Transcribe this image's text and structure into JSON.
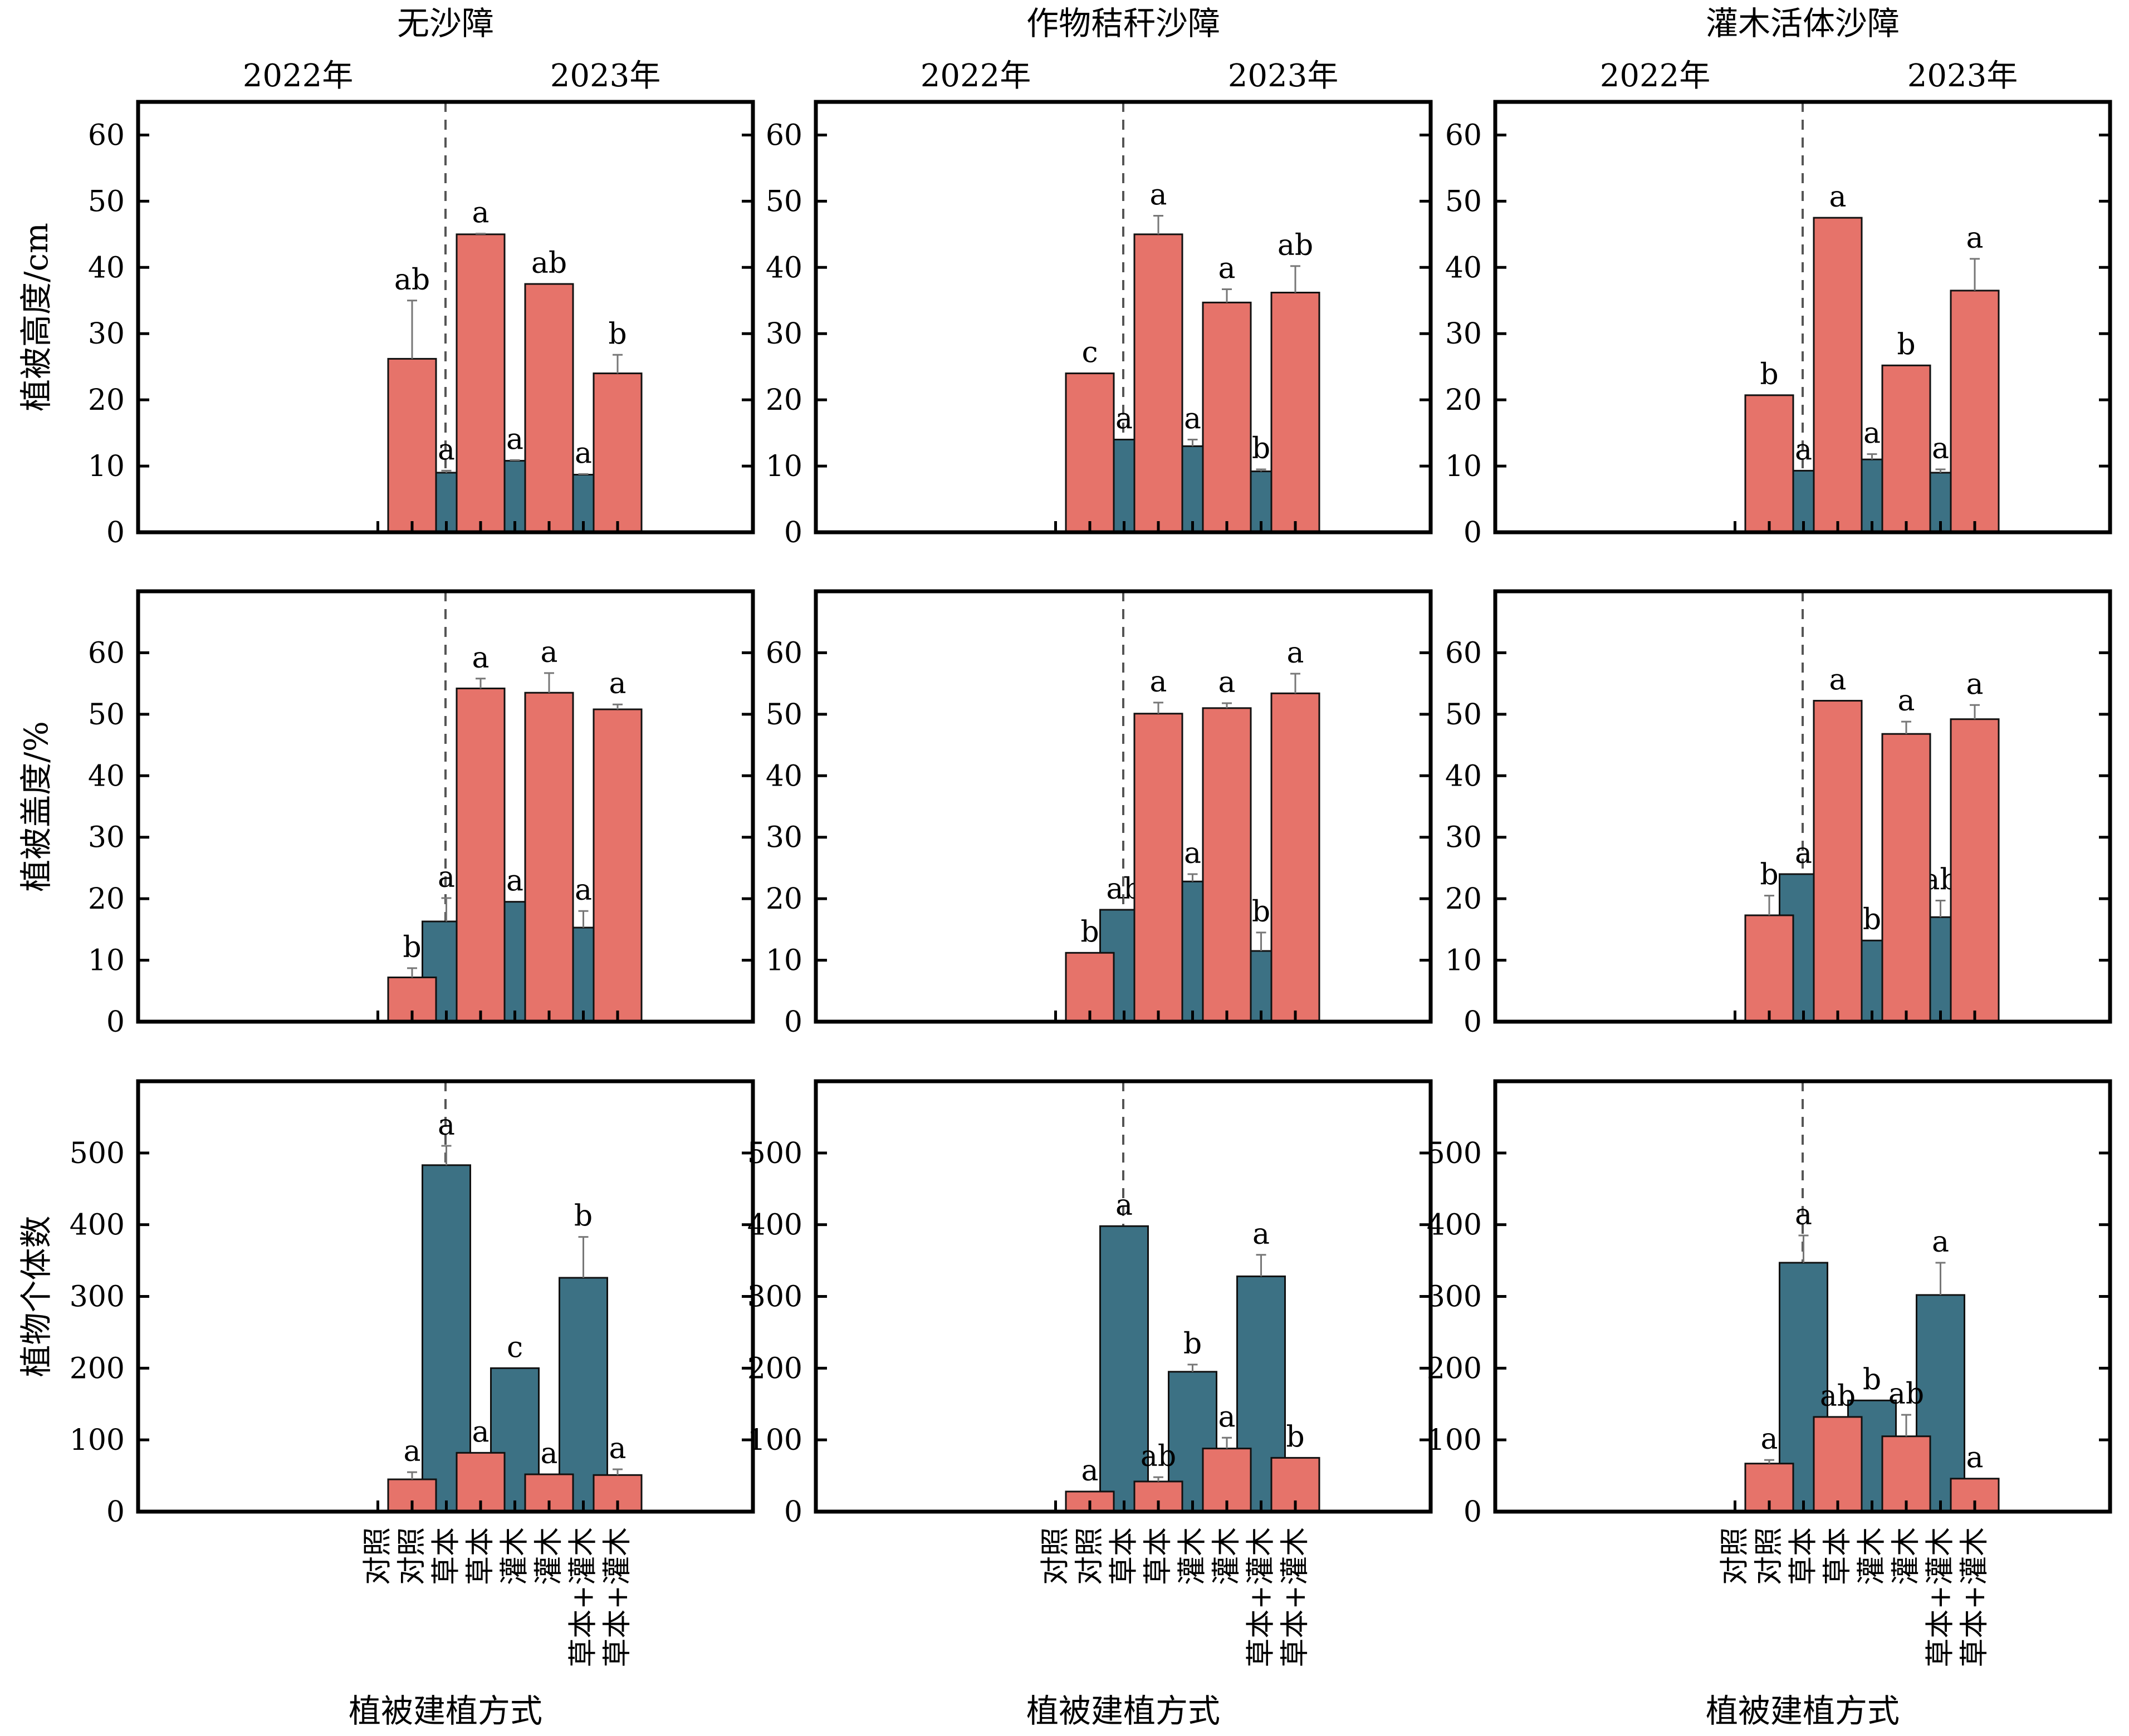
{
  "colors": {
    "y2022": "#3c7184",
    "y2023": "#e6736a"
  },
  "panel_titles": [
    "无沙障",
    "作物秸秆沙障",
    "灌木活体沙障"
  ],
  "years": [
    "2022年",
    "2023年"
  ],
  "categories": [
    "对照",
    "草本",
    "灌木",
    "草本+灌木"
  ],
  "xlabel": "植被建植方式",
  "chart_data": [
    {
      "type": "bar",
      "title": "无沙障",
      "xlabel": "植被建植方式",
      "ylabel": "植被高度/cm",
      "ylim": [
        0,
        65
      ],
      "yticks": [
        0,
        10,
        20,
        30,
        40,
        50,
        60
      ],
      "categories": [
        "对照",
        "草本",
        "灌木",
        "草本+灌木"
      ],
      "series": [
        {
          "name": "2022年",
          "values": [
            0,
            9,
            10.8,
            8.7
          ],
          "errors": [
            0,
            0.3,
            0.1,
            0.1
          ],
          "labels": [
            "",
            "a",
            "a",
            "a"
          ]
        },
        {
          "name": "2023年",
          "values": [
            26.2,
            45,
            37.5,
            24
          ],
          "errors": [
            8.8,
            0.1,
            0,
            2.8
          ],
          "labels": [
            "ab",
            "a",
            "ab",
            "b"
          ]
        }
      ]
    },
    {
      "type": "bar",
      "title": "作物秸秆沙障",
      "xlabel": "植被建植方式",
      "ylabel": "植被高度/cm",
      "ylim": [
        0,
        65
      ],
      "yticks": [
        0,
        10,
        20,
        30,
        40,
        50,
        60
      ],
      "categories": [
        "对照",
        "草本",
        "灌木",
        "草本+灌木"
      ],
      "series": [
        {
          "name": "2022年",
          "values": [
            0,
            14,
            13,
            9.2
          ],
          "errors": [
            0,
            0,
            1,
            0.3
          ],
          "labels": [
            "",
            "a",
            "a",
            "b"
          ]
        },
        {
          "name": "2023年",
          "values": [
            24,
            45,
            34.7,
            36.2
          ],
          "errors": [
            0,
            2.8,
            2,
            4
          ],
          "labels": [
            "c",
            "a",
            "a",
            "ab"
          ]
        }
      ]
    },
    {
      "type": "bar",
      "title": "灌木活体沙障",
      "xlabel": "植被建植方式",
      "ylabel": "植被高度/cm",
      "ylim": [
        0,
        65
      ],
      "yticks": [
        0,
        10,
        20,
        30,
        40,
        50,
        60
      ],
      "categories": [
        "对照",
        "草本",
        "灌木",
        "草本+灌木"
      ],
      "series": [
        {
          "name": "2022年",
          "values": [
            0,
            9.3,
            11,
            9
          ],
          "errors": [
            0,
            0,
            0.8,
            0.5
          ],
          "labels": [
            "",
            "a",
            "a",
            "a"
          ]
        },
        {
          "name": "2023年",
          "values": [
            20.7,
            47.5,
            25.2,
            36.5
          ],
          "errors": [
            0,
            0,
            0,
            4.8
          ],
          "labels": [
            "b",
            "a",
            "b",
            "a"
          ]
        }
      ]
    },
    {
      "type": "bar",
      "title": "无沙障",
      "xlabel": "植被建植方式",
      "ylabel": "植被盖度/%",
      "ylim": [
        0,
        70
      ],
      "yticks": [
        0,
        10,
        20,
        30,
        40,
        50,
        60
      ],
      "categories": [
        "对照",
        "草本",
        "灌木",
        "草本+灌木"
      ],
      "series": [
        {
          "name": "2022年",
          "values": [
            0,
            16.3,
            19.5,
            15.3
          ],
          "errors": [
            0,
            3.8,
            0,
            2.7
          ],
          "labels": [
            "",
            "a",
            "a",
            "a"
          ]
        },
        {
          "name": "2023年",
          "values": [
            7.2,
            54.2,
            53.5,
            50.8
          ],
          "errors": [
            1.5,
            1.6,
            3.2,
            0.8
          ],
          "labels": [
            "b",
            "a",
            "a",
            "a"
          ]
        }
      ]
    },
    {
      "type": "bar",
      "title": "作物秸秆沙障",
      "xlabel": "植被建植方式",
      "ylabel": "植被盖度/%",
      "ylim": [
        0,
        70
      ],
      "yticks": [
        0,
        10,
        20,
        30,
        40,
        50,
        60
      ],
      "categories": [
        "对照",
        "草本",
        "灌木",
        "草本+灌木"
      ],
      "series": [
        {
          "name": "2022年",
          "values": [
            0,
            18.2,
            22.8,
            11.5
          ],
          "errors": [
            0,
            0,
            1.2,
            3
          ],
          "labels": [
            "",
            "ab",
            "a",
            "b"
          ]
        },
        {
          "name": "2023年",
          "values": [
            11.2,
            50.1,
            51,
            53.4
          ],
          "errors": [
            0,
            1.8,
            0.8,
            3.2
          ],
          "labels": [
            "b",
            "a",
            "a",
            "a"
          ]
        }
      ]
    },
    {
      "type": "bar",
      "title": "灌木活体沙障",
      "xlabel": "植被建植方式",
      "ylabel": "植被盖度/%",
      "ylim": [
        0,
        70
      ],
      "yticks": [
        0,
        10,
        20,
        30,
        40,
        50,
        60
      ],
      "categories": [
        "对照",
        "草本",
        "灌木",
        "草本+灌木"
      ],
      "series": [
        {
          "name": "2022年",
          "values": [
            0,
            24,
            13.2,
            17
          ],
          "errors": [
            0,
            0,
            0,
            2.7
          ],
          "labels": [
            "",
            "a",
            "b",
            "ab"
          ]
        },
        {
          "name": "2023年",
          "values": [
            17.3,
            52.2,
            46.8,
            49.2
          ],
          "errors": [
            3.2,
            0,
            2,
            2.3
          ],
          "labels": [
            "b",
            "a",
            "a",
            "a"
          ]
        }
      ]
    },
    {
      "type": "bar",
      "title": "无沙障",
      "xlabel": "植被建植方式",
      "ylabel": "植物个体数",
      "ylim": [
        0,
        600
      ],
      "yticks": [
        0,
        100,
        200,
        300,
        400,
        500
      ],
      "categories": [
        "对照",
        "草本",
        "灌木",
        "草本+灌木"
      ],
      "series": [
        {
          "name": "2022年",
          "values": [
            0,
            483,
            200,
            326
          ],
          "errors": [
            0,
            27,
            0,
            57
          ],
          "labels": [
            "",
            "a",
            "c",
            "b"
          ]
        },
        {
          "name": "2023年",
          "values": [
            45,
            82,
            52,
            51
          ],
          "errors": [
            10,
            0,
            0,
            8
          ],
          "labels": [
            "a",
            "a",
            "a",
            "a"
          ]
        }
      ]
    },
    {
      "type": "bar",
      "title": "作物秸秆沙障",
      "xlabel": "植被建植方式",
      "ylabel": "植物个体数",
      "ylim": [
        0,
        600
      ],
      "yticks": [
        0,
        100,
        200,
        300,
        400,
        500
      ],
      "categories": [
        "对照",
        "草本",
        "灌木",
        "草本+灌木"
      ],
      "series": [
        {
          "name": "2022年",
          "values": [
            0,
            398,
            195,
            328
          ],
          "errors": [
            0,
            0,
            10,
            30
          ],
          "labels": [
            "",
            "a",
            "b",
            "a"
          ]
        },
        {
          "name": "2023年",
          "values": [
            28,
            42,
            88,
            75
          ],
          "errors": [
            0,
            6,
            15,
            0
          ],
          "labels": [
            "a",
            "ab",
            "a",
            "b"
          ]
        }
      ]
    },
    {
      "type": "bar",
      "title": "灌木活体沙障",
      "xlabel": "植被建植方式",
      "ylabel": "植物个体数",
      "ylim": [
        0,
        600
      ],
      "yticks": [
        0,
        100,
        200,
        300,
        400,
        500
      ],
      "categories": [
        "对照",
        "草本",
        "灌木",
        "草本+灌木"
      ],
      "series": [
        {
          "name": "2022年",
          "values": [
            0,
            347,
            155,
            302
          ],
          "errors": [
            0,
            38,
            0,
            45
          ],
          "labels": [
            "",
            "a",
            "b",
            "a"
          ]
        },
        {
          "name": "2023年",
          "values": [
            67,
            132,
            105,
            46
          ],
          "errors": [
            5,
            0,
            30,
            0
          ],
          "labels": [
            "a",
            "ab",
            "ab",
            "a"
          ]
        }
      ]
    }
  ]
}
